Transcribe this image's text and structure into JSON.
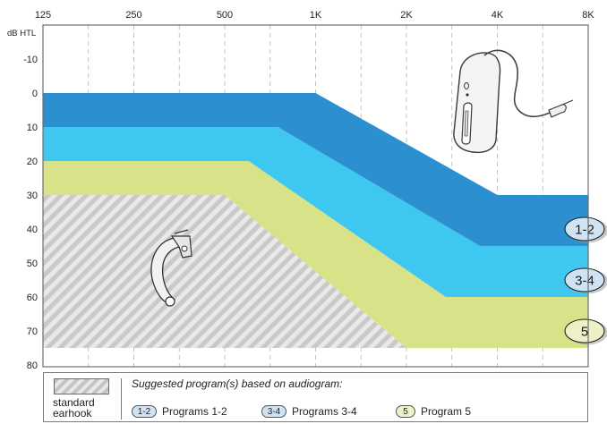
{
  "chart_data": {
    "type": "area",
    "x_axis": {
      "ticks": [
        "125",
        "250",
        "500",
        "1K",
        "2K",
        "4K",
        "8K"
      ],
      "scale": "log",
      "position": "top"
    },
    "y_axis": {
      "unit_label": "dB HTL",
      "ticks": [
        "-10",
        "0",
        "10",
        "20",
        "30",
        "40",
        "50",
        "60",
        "70",
        "80"
      ],
      "inverted": true,
      "ylim": [
        -20,
        85
      ]
    },
    "grid": {
      "vertical": "dashed"
    },
    "series": [
      {
        "id": "programs_1_2",
        "color": "#2b8fd0",
        "upper": [
          [
            125,
            0
          ],
          [
            1000,
            0
          ],
          [
            4000,
            30
          ],
          [
            8000,
            30
          ]
        ],
        "lower": [
          [
            125,
            10
          ],
          [
            750,
            10
          ],
          [
            3500,
            45
          ],
          [
            8000,
            45
          ]
        ]
      },
      {
        "id": "programs_3_4",
        "color": "#3fc8ef",
        "upper": [
          [
            125,
            10
          ],
          [
            750,
            10
          ],
          [
            3500,
            45
          ],
          [
            8000,
            45
          ]
        ],
        "lower": [
          [
            125,
            20
          ],
          [
            600,
            20
          ],
          [
            2700,
            60
          ],
          [
            8000,
            60
          ]
        ]
      },
      {
        "id": "program_5",
        "color": "#d7e289",
        "upper": [
          [
            125,
            20
          ],
          [
            600,
            20
          ],
          [
            2700,
            60
          ],
          [
            8000,
            60
          ]
        ],
        "lower": [
          [
            125,
            30
          ],
          [
            500,
            30
          ],
          [
            2000,
            75
          ],
          [
            8000,
            75
          ]
        ]
      },
      {
        "id": "standard_earhook",
        "color": "#cccccc",
        "pattern": "hatched",
        "upper": [
          [
            125,
            30
          ],
          [
            500,
            30
          ],
          [
            2000,
            75
          ]
        ],
        "lower": [
          [
            125,
            75
          ],
          [
            2000,
            75
          ]
        ]
      }
    ],
    "badges": [
      {
        "label": "1-2",
        "y": 40,
        "color": "#cfe3f5"
      },
      {
        "label": "3-4",
        "y": 55,
        "color": "#cfe3f5"
      },
      {
        "label": "5",
        "y": 70,
        "color": "#eef0c8"
      }
    ]
  },
  "legend": {
    "earhook_label": "standard earhook",
    "heading": "Suggested program(s) based on audiogram:",
    "items": [
      {
        "badge": "1-2",
        "label": "Programs 1-2"
      },
      {
        "badge": "3-4",
        "label": "Programs 3-4"
      },
      {
        "badge": "5",
        "label": "Program 5"
      }
    ]
  },
  "colors": {
    "hatch_light": "#e8e8e8",
    "hatch_dark": "#c4c4c4",
    "frame": "#6f6f6f"
  }
}
